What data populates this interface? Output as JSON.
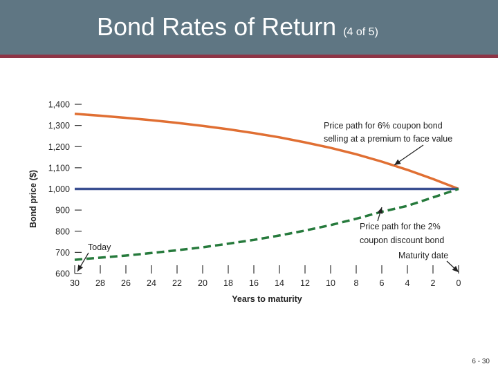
{
  "slide": {
    "title": "Bond Rates of Return",
    "subtitle": "(4 of 5)",
    "page_number": "6 - 30"
  },
  "colors": {
    "premium": "#e06f33",
    "par": "#3a4f91",
    "discount": "#267a3c",
    "axis": "#333333"
  },
  "chart_data": {
    "type": "line",
    "ylabel": "Bond price ($)",
    "xlabel": "Years to maturity",
    "x_ticks": [
      30,
      28,
      26,
      24,
      22,
      20,
      18,
      16,
      14,
      12,
      10,
      8,
      6,
      4,
      2,
      0
    ],
    "y_ticks": [
      600,
      700,
      800,
      900,
      1000,
      1100,
      1200,
      1300,
      1400
    ],
    "y_tick_labels": [
      "600",
      "700",
      "800",
      "900",
      "1,000",
      "1,100",
      "1,200",
      "1,300",
      "1,400"
    ],
    "xlim": [
      30,
      0
    ],
    "ylim": [
      600,
      1400
    ],
    "series": [
      {
        "key": "premium",
        "style": "solid",
        "x": [
          30,
          28,
          26,
          24,
          22,
          20,
          18,
          16,
          14,
          12,
          10,
          8,
          6,
          4,
          2,
          0
        ],
        "values": [
          1355,
          1346,
          1336,
          1325,
          1312,
          1298,
          1282,
          1264,
          1244,
          1220,
          1194,
          1164,
          1129,
          1090,
          1047,
          1000
        ]
      },
      {
        "key": "par",
        "style": "solid",
        "x": [
          30,
          0
        ],
        "values": [
          1000,
          1000
        ]
      },
      {
        "key": "discount",
        "style": "dashed",
        "x": [
          30,
          28,
          26,
          24,
          22,
          20,
          18,
          16,
          14,
          12,
          10,
          8,
          6,
          4,
          2,
          0
        ],
        "values": [
          665,
          675,
          685,
          697,
          710,
          724,
          741,
          759,
          780,
          803,
          829,
          859,
          892,
          920,
          960,
          1000
        ]
      }
    ],
    "annotations": {
      "premium": [
        "Price path for 6% coupon bond",
        "selling at a premium to face value"
      ],
      "discount": [
        "Price path for the 2%",
        "coupon discount bond"
      ],
      "maturity": "Maturity date",
      "today": "Today"
    }
  }
}
